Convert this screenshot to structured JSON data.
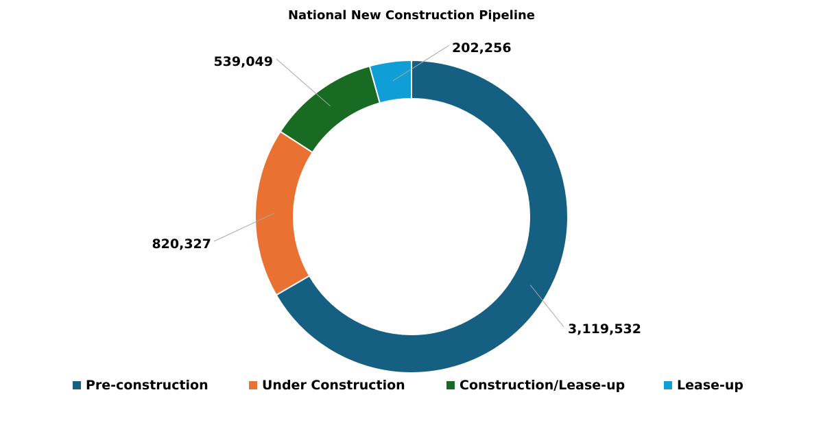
{
  "chart_data": {
    "type": "pie",
    "donut": true,
    "title": "National New Construction Pipeline",
    "categories": [
      "Pre-construction",
      "Under Construction",
      "Construction/Lease-up",
      "Lease-up"
    ],
    "values": [
      3119532,
      820327,
      539049,
      202256
    ],
    "data_labels": [
      "3,119,532",
      "820,327",
      "539,049",
      "202,256"
    ],
    "colors": [
      "#156082",
      "#e97132",
      "#196b24",
      "#0f9ed5"
    ],
    "start": "top, clockwise",
    "legend_position": "bottom"
  }
}
